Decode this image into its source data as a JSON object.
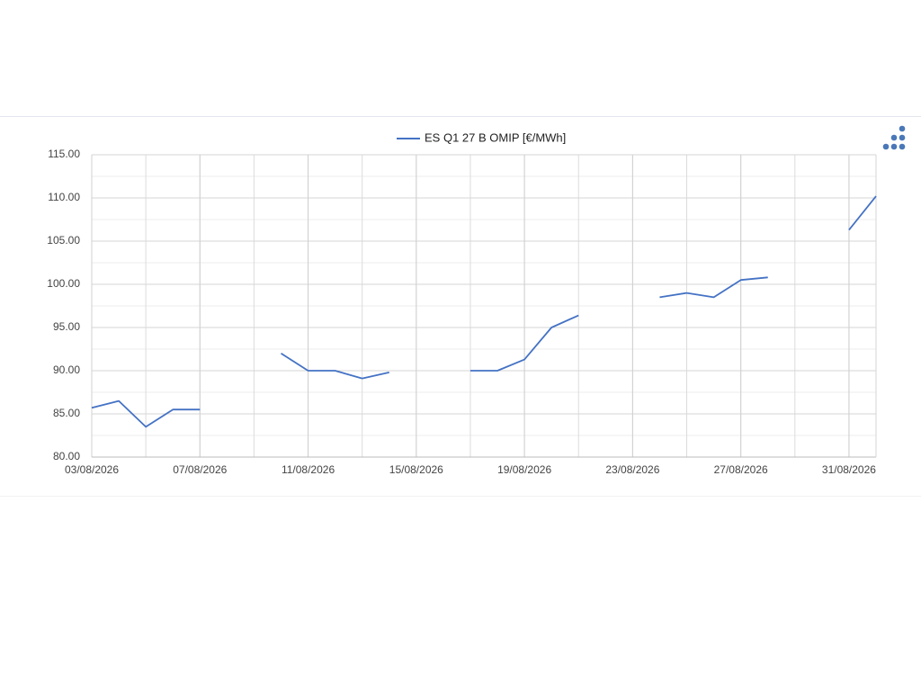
{
  "chart_data": {
    "type": "line",
    "series": [
      {
        "name": "ES Q1 27 B OMIP [€/MWh]",
        "color": "#4472c4",
        "values": [
          85.7,
          86.5,
          83.5,
          85.5,
          85.5,
          null,
          null,
          92.0,
          90.0,
          90.0,
          89.1,
          89.8,
          null,
          null,
          90.0,
          90.0,
          91.3,
          95.0,
          96.4,
          null,
          null,
          98.5,
          99.0,
          98.5,
          100.5,
          100.8,
          null,
          null,
          106.3,
          110.2
        ]
      }
    ],
    "x": [
      "03/08/2026",
      "04/08/2026",
      "05/08/2026",
      "06/08/2026",
      "07/08/2026",
      "08/08/2026",
      "09/08/2026",
      "10/08/2026",
      "11/08/2026",
      "12/08/2026",
      "13/08/2026",
      "14/08/2026",
      "15/08/2026",
      "16/08/2026",
      "17/08/2026",
      "18/08/2026",
      "19/08/2026",
      "20/08/2026",
      "21/08/2026",
      "22/08/2026",
      "23/08/2026",
      "24/08/2026",
      "25/08/2026",
      "26/08/2026",
      "27/08/2026",
      "28/08/2026",
      "29/08/2026",
      "30/08/2026",
      "31/08/2026",
      "01/09/2026"
    ],
    "xlim": [
      "03/08/2026",
      "01/09/2026"
    ],
    "xticks": [
      "03/08/2026",
      "07/08/2026",
      "11/08/2026",
      "15/08/2026",
      "19/08/2026",
      "23/08/2026",
      "27/08/2026",
      "31/08/2026"
    ],
    "ylim": [
      80,
      115
    ],
    "yticks": [
      {
        "value": 80,
        "label": "80.00"
      },
      {
        "value": 85,
        "label": "85.00"
      },
      {
        "value": 90,
        "label": "90.00"
      },
      {
        "value": 95,
        "label": "95.00"
      },
      {
        "value": 100,
        "label": "100.00"
      },
      {
        "value": 105,
        "label": "105.00"
      },
      {
        "value": 110,
        "label": "110.00"
      },
      {
        "value": 115,
        "label": "115.00"
      }
    ],
    "grid": true
  }
}
